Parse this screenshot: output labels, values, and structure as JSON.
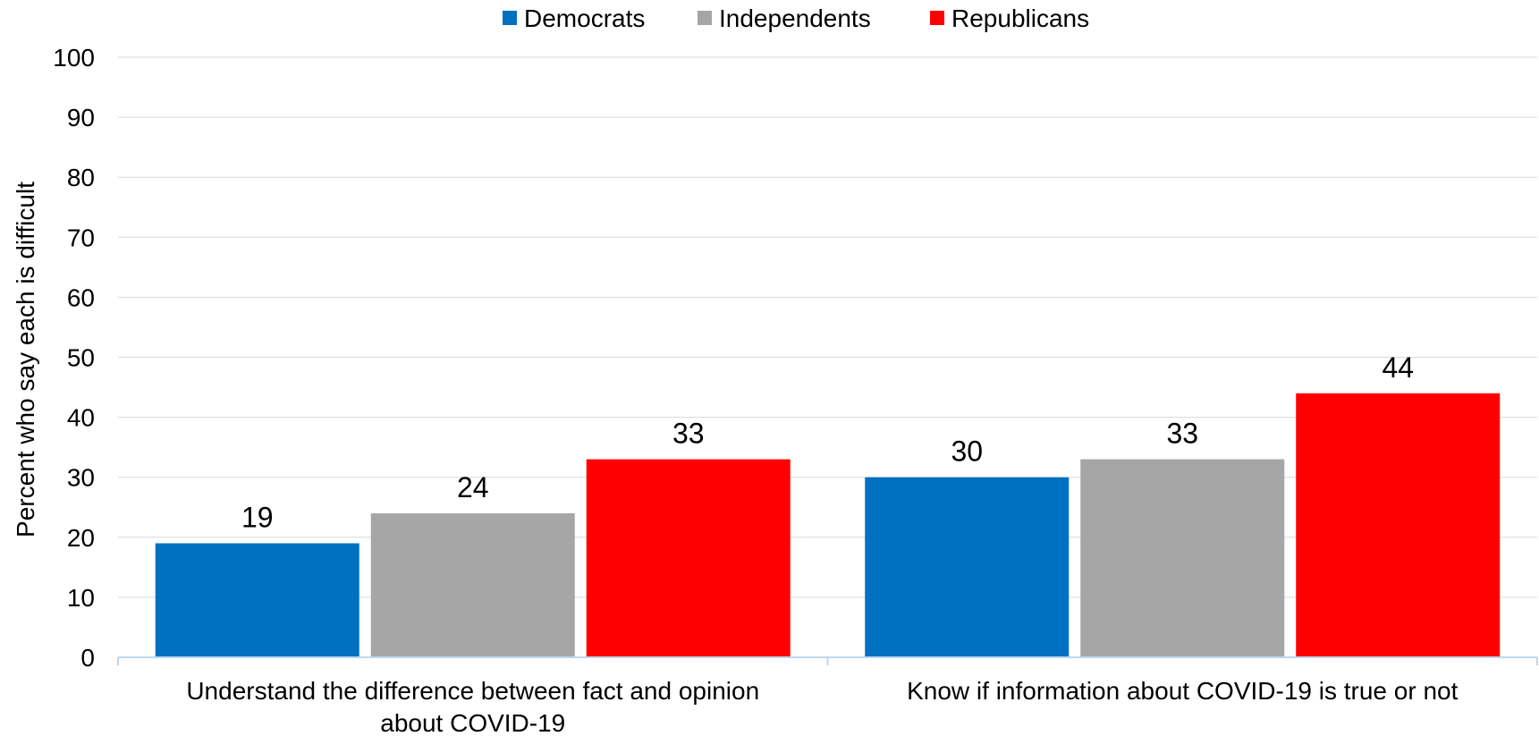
{
  "chart_data": {
    "type": "bar",
    "categories": [
      "Understand the difference between fact and opinion about COVID-19",
      "Know if information about COVID-19 is true or not"
    ],
    "category_lines": [
      [
        "Understand the difference between fact and opinion",
        "about COVID-19"
      ],
      [
        "Know if information about COVID-19 is true or not"
      ]
    ],
    "series": [
      {
        "name": "Democrats",
        "values": [
          19,
          30
        ],
        "color": "#0070C0"
      },
      {
        "name": "Independents",
        "values": [
          24,
          33
        ],
        "color": "#A6A6A6"
      },
      {
        "name": "Republicans",
        "values": [
          33,
          44
        ],
        "color": "#FF0000"
      }
    ],
    "ylabel": "Percent who say each is difficult",
    "ylim": [
      0,
      100
    ],
    "yticks": [
      0,
      10,
      20,
      30,
      40,
      50,
      60,
      70,
      80,
      90,
      100
    ],
    "grid": true,
    "legend_position": "top-center",
    "data_labels": true,
    "gridline_color": "#D9D9D9",
    "axis_color": "#BDD7EE"
  }
}
